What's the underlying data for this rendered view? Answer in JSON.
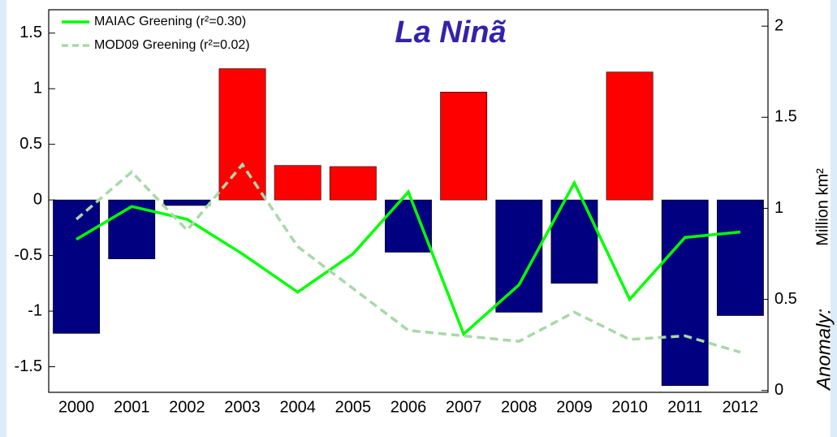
{
  "chart_data": {
    "type": "bar",
    "title": "La Ninã",
    "y2label": "Million km²",
    "y2label_prefix": "Anomaly:",
    "categories": [
      "2000",
      "2001",
      "2002",
      "2003",
      "2004",
      "2005",
      "2006",
      "2007",
      "2008",
      "2009",
      "2010",
      "2011",
      "2012"
    ],
    "values": [
      -1.2,
      -0.53,
      -0.05,
      1.18,
      0.31,
      0.3,
      -0.47,
      0.97,
      -1.01,
      -0.75,
      1.15,
      -1.67,
      -1.04
    ],
    "positive_color": "#ff0000",
    "negative_color": "#000080",
    "series": [
      {
        "name": "MAIAC Greening (r²=0.30)",
        "color": "#00ff00",
        "dashed": false,
        "axis": "y2",
        "values": [
          0.83,
          1.01,
          0.94,
          0.75,
          0.54,
          0.75,
          1.09,
          0.31,
          0.58,
          1.14,
          0.5,
          0.84,
          0.87
        ]
      },
      {
        "name": "MOD09 Greening (r²=0.02)",
        "color": "#a8d8a8",
        "dashed": true,
        "axis": "y2",
        "values": [
          0.94,
          1.2,
          0.88,
          1.24,
          0.79,
          0.56,
          0.33,
          0.3,
          0.27,
          0.43,
          0.28,
          0.3,
          0.21
        ]
      }
    ],
    "ylim": [
      -1.73,
      1.71
    ],
    "yticks": [
      -1.5,
      -1,
      -0.5,
      0,
      0.5,
      1,
      1.5
    ],
    "y2lim": [
      -0.01,
      2.09
    ],
    "y2ticks": [
      0,
      0.5,
      1,
      1.5,
      2
    ],
    "legend": "upper left"
  }
}
